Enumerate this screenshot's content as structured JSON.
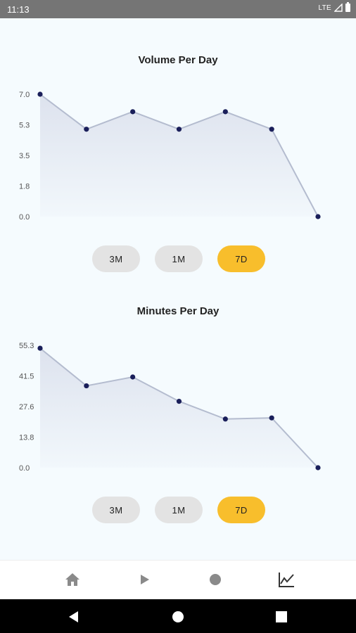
{
  "status_bar": {
    "time": "11:13",
    "network": "LTE"
  },
  "charts": [
    {
      "title": "Volume Per Day",
      "y_ticks": [
        "7.0",
        "5.3",
        "3.5",
        "1.8",
        "0.0"
      ],
      "ranges": [
        {
          "label": "3M",
          "active": false
        },
        {
          "label": "1M",
          "active": false
        },
        {
          "label": "7D",
          "active": true
        }
      ]
    },
    {
      "title": "Minutes Per Day",
      "y_ticks": [
        "55.3",
        "41.5",
        "27.6",
        "13.8",
        "0.0"
      ],
      "ranges": [
        {
          "label": "3M",
          "active": false
        },
        {
          "label": "1M",
          "active": false
        },
        {
          "label": "7D",
          "active": true
        }
      ]
    }
  ],
  "chart_data": [
    {
      "type": "area",
      "title": "Volume Per Day",
      "x": [
        1,
        2,
        3,
        4,
        5,
        6,
        7
      ],
      "values": [
        7.0,
        5.0,
        6.0,
        5.0,
        6.0,
        5.0,
        0.0
      ],
      "ylim": [
        0,
        7.0
      ],
      "grid": false,
      "colors": {
        "line": "#b4bccf",
        "point": "#1a1f5a",
        "fill": "#d9deeb"
      }
    },
    {
      "type": "area",
      "title": "Minutes Per Day",
      "x": [
        1,
        2,
        3,
        4,
        5,
        6,
        7
      ],
      "values": [
        54.0,
        37.0,
        41.0,
        30.0,
        22.0,
        22.5,
        0.0
      ],
      "ylim": [
        0,
        55.3
      ],
      "grid": false,
      "colors": {
        "line": "#b4bccf",
        "point": "#1a1f5a",
        "fill": "#d9deeb"
      }
    }
  ],
  "bottom_nav": [
    {
      "name": "home-icon",
      "active": false
    },
    {
      "name": "play-icon",
      "active": false
    },
    {
      "name": "record-icon",
      "active": false
    },
    {
      "name": "stats-icon",
      "active": true
    }
  ],
  "colors": {
    "active_range": "#f8be2c",
    "inactive_range": "#e3e3e3",
    "background": "#f5fbfe"
  }
}
